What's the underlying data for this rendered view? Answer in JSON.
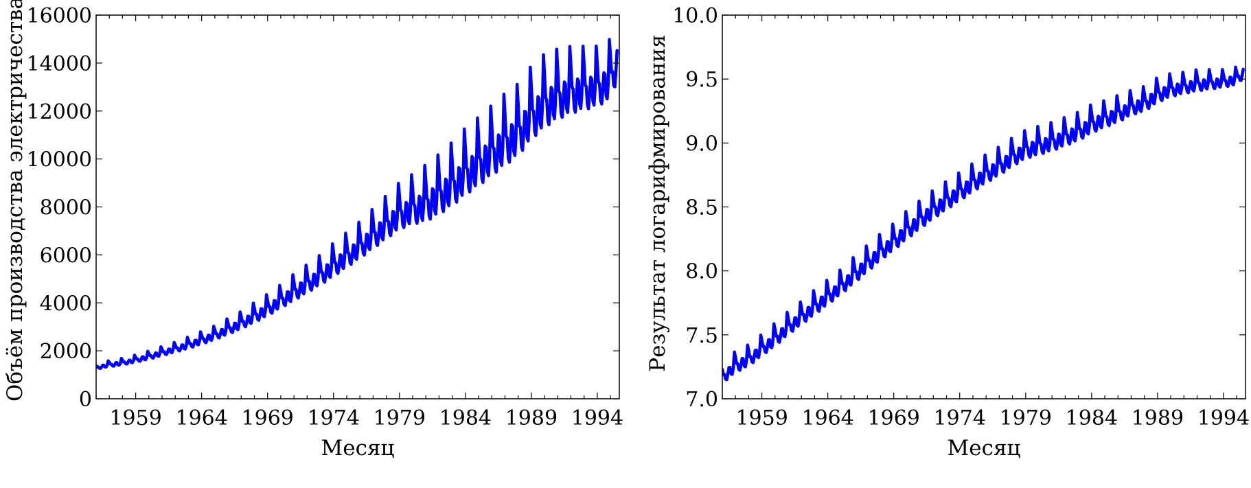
{
  "colors": {
    "line": "#0000ff",
    "axes": "#000000",
    "background": "#ffffff"
  },
  "chart_data": [
    {
      "type": "line",
      "title": "",
      "xlabel": "Месяц",
      "ylabel": "Объём производства электричества",
      "x_start": "1956-01",
      "x_end": "1995-08",
      "xlim": [
        1956.0,
        1995.67
      ],
      "ylim": [
        0,
        16000
      ],
      "xticks": [
        1959,
        1964,
        1969,
        1974,
        1979,
        1984,
        1989,
        1994
      ],
      "xtick_labels": [
        "1959",
        "1964",
        "1969",
        "1974",
        "1979",
        "1984",
        "1989",
        "1994"
      ],
      "yticks": [
        0,
        2000,
        4000,
        6000,
        8000,
        10000,
        12000,
        14000,
        16000
      ],
      "ytick_labels": [
        "0",
        "2000",
        "4000",
        "6000",
        "8000",
        "10000",
        "12000",
        "14000",
        "16000"
      ],
      "grid": false,
      "series": [
        {
          "color": "#0000ff",
          "x": [
            1956.0,
            1957.0,
            1958.0,
            1959.0,
            1960.0,
            1961.0,
            1962.0,
            1963.0,
            1964.0,
            1965.0,
            1966.0,
            1967.0,
            1968.0,
            1969.0,
            1970.0,
            1971.0,
            1972.0,
            1973.0,
            1974.0,
            1975.0,
            1976.0,
            1977.0,
            1978.0,
            1979.0,
            1980.0,
            1981.0,
            1982.0,
            1983.0,
            1984.0,
            1985.0,
            1986.0,
            1987.0,
            1988.0,
            1989.0,
            1990.0,
            1991.0,
            1992.0,
            1993.0,
            1994.0,
            1995.0,
            1995.58
          ],
          "trend": [
            1300,
            1420,
            1500,
            1620,
            1760,
            1920,
            2080,
            2250,
            2450,
            2650,
            2900,
            3150,
            3450,
            3750,
            4100,
            4450,
            4800,
            5150,
            5550,
            5950,
            6350,
            6800,
            7250,
            7700,
            7950,
            8150,
            8500,
            8900,
            9400,
            9800,
            10250,
            10700,
            11100,
            11800,
            12300,
            12600,
            12800,
            12900,
            13000,
            13300,
            14200
          ],
          "seasonal_peak": [
            150,
            180,
            200,
            220,
            250,
            280,
            300,
            350,
            380,
            420,
            480,
            520,
            600,
            650,
            700,
            800,
            850,
            900,
            1000,
            1050,
            1100,
            1200,
            1300,
            1400,
            1500,
            1700,
            1800,
            1900,
            2000,
            2050,
            2100,
            2150,
            2150,
            2200,
            2200,
            2100,
            2000,
            1900,
            1800,
            1800,
            1800
          ]
        }
      ]
    },
    {
      "type": "line",
      "title": "",
      "xlabel": "Месяц",
      "ylabel": "Результат логарифмирования",
      "x_start": "1956-01",
      "x_end": "1995-08",
      "xlim": [
        1956.0,
        1995.67
      ],
      "ylim": [
        7.0,
        10.0
      ],
      "xticks": [
        1959,
        1964,
        1969,
        1974,
        1979,
        1984,
        1989,
        1994
      ],
      "xtick_labels": [
        "1959",
        "1964",
        "1969",
        "1974",
        "1979",
        "1984",
        "1989",
        "1994"
      ],
      "yticks": [
        7.0,
        7.5,
        8.0,
        8.5,
        9.0,
        9.5,
        10.0
      ],
      "ytick_labels": [
        "7.0",
        "7.5",
        "8.0",
        "8.5",
        "9.0",
        "9.5",
        "10.0"
      ],
      "grid": false,
      "series": [
        {
          "color": "#0000ff",
          "x": [
            1956.0,
            1957.0,
            1958.0,
            1959.0,
            1960.0,
            1961.0,
            1962.0,
            1963.0,
            1964.0,
            1965.0,
            1966.0,
            1967.0,
            1968.0,
            1969.0,
            1970.0,
            1971.0,
            1972.0,
            1973.0,
            1974.0,
            1975.0,
            1976.0,
            1977.0,
            1978.0,
            1979.0,
            1980.0,
            1981.0,
            1982.0,
            1983.0,
            1984.0,
            1985.0,
            1986.0,
            1987.0,
            1988.0,
            1989.0,
            1990.0,
            1991.0,
            1992.0,
            1993.0,
            1994.0,
            1995.0,
            1995.58
          ],
          "trend": [
            7.17,
            7.26,
            7.31,
            7.39,
            7.47,
            7.56,
            7.64,
            7.72,
            7.8,
            7.88,
            7.97,
            8.06,
            8.15,
            8.23,
            8.32,
            8.4,
            8.48,
            8.55,
            8.62,
            8.69,
            8.76,
            8.82,
            8.89,
            8.95,
            8.98,
            9.01,
            9.05,
            9.09,
            9.15,
            9.19,
            9.23,
            9.28,
            9.31,
            9.38,
            9.42,
            9.44,
            9.46,
            9.47,
            9.48,
            9.5,
            9.56
          ],
          "seasonal_peak": [
            0.11,
            0.12,
            0.12,
            0.12,
            0.13,
            0.13,
            0.13,
            0.14,
            0.14,
            0.14,
            0.15,
            0.15,
            0.15,
            0.15,
            0.16,
            0.16,
            0.16,
            0.16,
            0.16,
            0.16,
            0.16,
            0.16,
            0.16,
            0.16,
            0.16,
            0.16,
            0.16,
            0.16,
            0.16,
            0.15,
            0.15,
            0.14,
            0.14,
            0.14,
            0.13,
            0.12,
            0.12,
            0.11,
            0.1,
            0.1,
            0.1
          ]
        }
      ]
    }
  ]
}
